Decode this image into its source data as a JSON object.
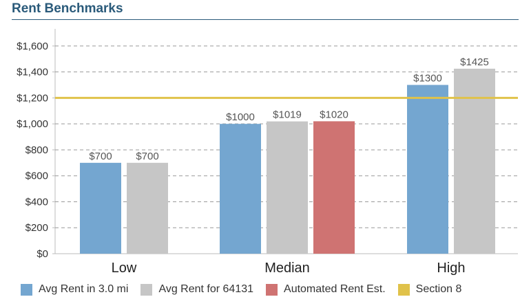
{
  "title": "Rent Benchmarks",
  "colors": {
    "title": "#2a5a7a",
    "grid": "#999999",
    "axis_text": "#333333",
    "label_text": "#555555"
  },
  "chart_data": {
    "type": "bar",
    "categories": [
      "Low",
      "Median",
      "High"
    ],
    "series": [
      {
        "name": "Avg Rent in 3.0 mi",
        "color": "#74a6d0",
        "values": [
          700,
          1000,
          1300
        ]
      },
      {
        "name": "Avg Rent for 64131",
        "color": "#c6c6c6",
        "values": [
          700,
          1019,
          1425
        ]
      },
      {
        "name": "Automated Rent Est.",
        "color": "#cf7372",
        "values": [
          null,
          1020,
          null
        ]
      }
    ],
    "data_labels": [
      [
        "$700",
        "$1000",
        "$1300"
      ],
      [
        "$700",
        "$1019",
        "$1425"
      ],
      [
        null,
        "$1020",
        null
      ]
    ],
    "reference_lines": [
      {
        "name": "Section 8",
        "value": 1200,
        "color": "#e0c24a"
      }
    ],
    "legend": [
      {
        "label": "Avg Rent in 3.0 mi",
        "color": "#74a6d0"
      },
      {
        "label": "Avg Rent for 64131",
        "color": "#c6c6c6"
      },
      {
        "label": "Automated Rent Est.",
        "color": "#cf7372"
      },
      {
        "label": "Section 8",
        "color": "#e0c24a"
      }
    ],
    "yticks": [
      0,
      200,
      400,
      600,
      800,
      1000,
      1200,
      1400,
      1600
    ],
    "ytick_labels": [
      "$0",
      "$200",
      "$400",
      "$600",
      "$800",
      "$1,000",
      "$1,200",
      "$1,400",
      "$1,600"
    ],
    "ylim": [
      0,
      1700
    ],
    "xlabel": "",
    "ylabel": "",
    "grid": true,
    "legend_position": "bottom"
  }
}
